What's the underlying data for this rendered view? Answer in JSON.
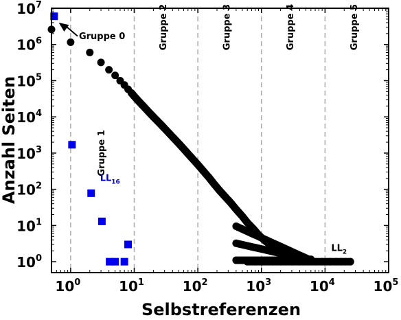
{
  "chart_data": {
    "type": "scatter",
    "xscale": "log",
    "yscale": "log",
    "xlim": [
      0.5,
      100000
    ],
    "ylim": [
      0.5,
      10000000
    ],
    "xlabel": "Selbstreferenzen",
    "ylabel": "Anzahl Seiten",
    "xticks": [
      {
        "value": 1,
        "base": "10",
        "exp": "0"
      },
      {
        "value": 10,
        "base": "10",
        "exp": "1"
      },
      {
        "value": 100,
        "base": "10",
        "exp": "2"
      },
      {
        "value": 1000,
        "base": "10",
        "exp": "3"
      },
      {
        "value": 10000,
        "base": "10",
        "exp": "4"
      },
      {
        "value": 100000,
        "base": "10",
        "exp": "5"
      }
    ],
    "yticks": [
      {
        "value": 1,
        "base": "10",
        "exp": "0"
      },
      {
        "value": 10,
        "base": "10",
        "exp": "1"
      },
      {
        "value": 100,
        "base": "10",
        "exp": "2"
      },
      {
        "value": 1000,
        "base": "10",
        "exp": "3"
      },
      {
        "value": 10000,
        "base": "10",
        "exp": "4"
      },
      {
        "value": 100000,
        "base": "10",
        "exp": "5"
      },
      {
        "value": 1000000,
        "base": "10",
        "exp": "6"
      },
      {
        "value": 10000000,
        "base": "10",
        "exp": "7"
      }
    ],
    "group_boundaries": [
      1,
      10,
      100,
      1000,
      10000
    ],
    "group_labels": [
      {
        "text": "Gruppe 1",
        "x": 3.0,
        "y": 1000,
        "color": "#000000"
      },
      {
        "text": "Gruppe 2",
        "x": 28,
        "y": 3000000,
        "color": "#000000"
      },
      {
        "text": "Gruppe 3",
        "x": 280,
        "y": 3000000,
        "color": "#000000"
      },
      {
        "text": "Gruppe 4",
        "x": 2800,
        "y": 3000000,
        "color": "#000000"
      },
      {
        "text": "Gruppe 5",
        "x": 28000,
        "y": 3000000,
        "color": "#000000"
      }
    ],
    "annotations": [
      {
        "text": "Gruppe 0",
        "x": 1.35,
        "y": 1400000,
        "arrow_from": [
          1.35,
          1700000
        ],
        "arrow_to": [
          0.65,
          4000000
        ],
        "color": "#000000"
      },
      {
        "text": "LL",
        "sub": "16",
        "x": 2.9,
        "y": 170,
        "color": "#0000cc"
      },
      {
        "text": "LL",
        "sub": "2",
        "x": 12500,
        "y": 2.0,
        "color": "#000000"
      }
    ],
    "series": [
      {
        "name": "LL2",
        "color": "#000000",
        "marker": "circle",
        "points": [
          [
            0.5,
            2600000
          ],
          [
            1,
            1150000
          ],
          [
            2,
            600000
          ],
          [
            3,
            320000
          ],
          [
            4,
            200000
          ],
          [
            5,
            140000
          ],
          [
            6,
            100000
          ],
          [
            7,
            76000
          ],
          [
            8,
            58000
          ],
          [
            9,
            46000
          ],
          [
            10,
            37000
          ],
          [
            12,
            26000
          ],
          [
            14,
            19500
          ],
          [
            17,
            13500
          ],
          [
            20,
            10000
          ],
          [
            25,
            6700
          ],
          [
            30,
            4800
          ],
          [
            40,
            2800
          ],
          [
            50,
            1850
          ],
          [
            60,
            1300
          ],
          [
            70,
            960
          ],
          [
            80,
            740
          ],
          [
            100,
            480
          ],
          [
            120,
            330
          ],
          [
            150,
            210
          ],
          [
            180,
            140
          ],
          [
            220,
            92
          ],
          [
            270,
            62
          ],
          [
            330,
            42
          ],
          [
            400,
            28
          ],
          [
            500,
            18
          ],
          [
            600,
            12
          ],
          [
            750,
            8
          ],
          [
            900,
            5.5
          ],
          [
            1100,
            4
          ],
          [
            1350,
            3
          ],
          [
            1700,
            2.4
          ],
          [
            2100,
            2
          ],
          [
            2600,
            1.7
          ],
          [
            3200,
            1.5
          ],
          [
            600,
            1
          ],
          [
            800,
            1
          ],
          [
            1000,
            1
          ],
          [
            1500,
            1
          ],
          [
            2000,
            1
          ],
          [
            3000,
            1
          ],
          [
            4000,
            1
          ],
          [
            5000,
            1
          ],
          [
            7000,
            1
          ],
          [
            9000,
            1
          ],
          [
            12000,
            1
          ],
          [
            15000,
            1
          ],
          [
            18000,
            1
          ],
          [
            21000,
            1
          ],
          [
            25000,
            1
          ]
        ]
      },
      {
        "name": "LL16",
        "color": "#0000ee",
        "marker": "square",
        "points": [
          [
            0.55,
            6000000
          ],
          [
            1.05,
            1700
          ],
          [
            2.1,
            78
          ],
          [
            3.1,
            13
          ],
          [
            4.1,
            1
          ],
          [
            5.0,
            1
          ],
          [
            7.0,
            1
          ],
          [
            8.0,
            3
          ]
        ]
      }
    ]
  }
}
